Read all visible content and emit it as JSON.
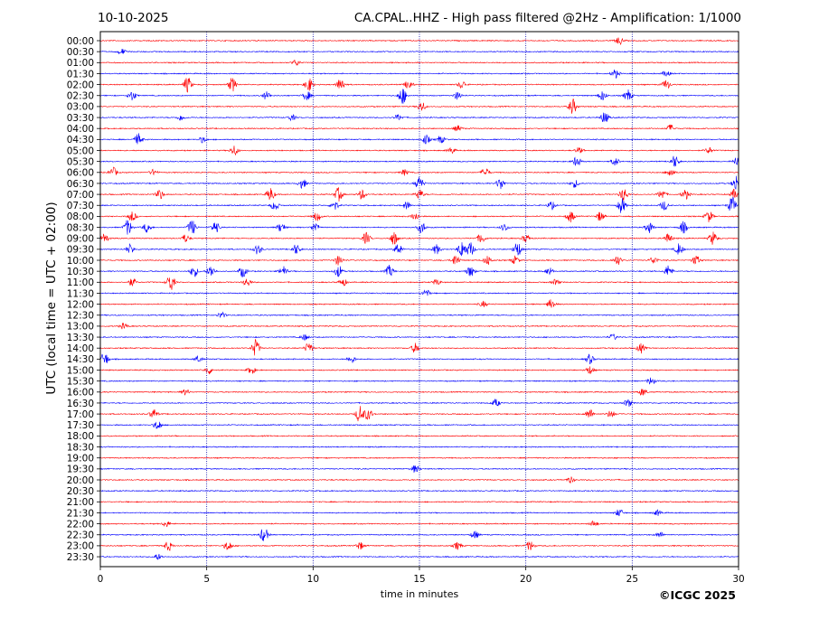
{
  "header": {
    "date": "10-10-2025",
    "title": "CA.CPAL..HHZ - High pass filtered @2Hz - Amplification: 1/1000"
  },
  "footer": {
    "copyright": "©ICGC 2025"
  },
  "colors": {
    "trace_a": "#ff0000",
    "trace_b": "#0000ff",
    "grid": "#0000aa"
  },
  "chart_data": {
    "type": "line",
    "title": "CA.CPAL..HHZ - High pass filtered @2Hz - Amplification: 1/1000",
    "xlabel": "time in minutes",
    "ylabel": "UTC (local time = UTC + 02:00)",
    "xlim": [
      0,
      30
    ],
    "x_ticks": [
      "0",
      "5",
      "10",
      "15",
      "20",
      "25",
      "30"
    ],
    "vertical_gridlines_minutes": [
      5,
      10,
      15,
      20,
      25
    ],
    "row_labels": [
      "00:00",
      "00:30",
      "01:00",
      "01:30",
      "02:00",
      "02:30",
      "03:00",
      "03:30",
      "04:00",
      "04:30",
      "05:00",
      "05:30",
      "06:00",
      "06:30",
      "07:00",
      "07:30",
      "08:00",
      "08:30",
      "09:00",
      "09:30",
      "10:00",
      "10:30",
      "11:00",
      "11:30",
      "12:00",
      "12:30",
      "13:00",
      "13:30",
      "14:00",
      "14:30",
      "15:00",
      "15:30",
      "16:00",
      "16:30",
      "17:00",
      "17:30",
      "18:00",
      "18:30",
      "19:00",
      "19:30",
      "20:00",
      "20:30",
      "21:00",
      "21:30",
      "22:00",
      "22:30",
      "23:00",
      "23:30"
    ],
    "trace_colors_alternating": [
      "#ff0000",
      "#0000ff"
    ],
    "events": [
      {
        "row": 0,
        "t": 24.4,
        "a": 0.4
      },
      {
        "row": 1,
        "t": 1.0,
        "a": 0.3
      },
      {
        "row": 2,
        "t": 9.2,
        "a": 0.3
      },
      {
        "row": 3,
        "t": 24.2,
        "a": 0.45
      },
      {
        "row": 3,
        "t": 26.6,
        "a": 0.3
      },
      {
        "row": 4,
        "t": 4.1,
        "a": 0.8
      },
      {
        "row": 4,
        "t": 6.2,
        "a": 0.7
      },
      {
        "row": 4,
        "t": 9.8,
        "a": 0.7
      },
      {
        "row": 4,
        "t": 11.3,
        "a": 0.7
      },
      {
        "row": 4,
        "t": 14.5,
        "a": 0.5
      },
      {
        "row": 4,
        "t": 17.0,
        "a": 0.4
      },
      {
        "row": 4,
        "t": 26.6,
        "a": 0.5
      },
      {
        "row": 5,
        "t": 1.5,
        "a": 0.5
      },
      {
        "row": 5,
        "t": 7.8,
        "a": 0.4
      },
      {
        "row": 5,
        "t": 9.7,
        "a": 0.5
      },
      {
        "row": 5,
        "t": 14.2,
        "a": 0.9
      },
      {
        "row": 5,
        "t": 16.8,
        "a": 0.4
      },
      {
        "row": 5,
        "t": 23.6,
        "a": 0.5
      },
      {
        "row": 5,
        "t": 24.8,
        "a": 0.6
      },
      {
        "row": 6,
        "t": 15.1,
        "a": 0.5
      },
      {
        "row": 6,
        "t": 22.2,
        "a": 0.8
      },
      {
        "row": 7,
        "t": 3.8,
        "a": 0.3
      },
      {
        "row": 7,
        "t": 9.0,
        "a": 0.3
      },
      {
        "row": 7,
        "t": 14.0,
        "a": 0.3
      },
      {
        "row": 7,
        "t": 23.7,
        "a": 0.6
      },
      {
        "row": 8,
        "t": 16.8,
        "a": 0.3
      },
      {
        "row": 8,
        "t": 26.8,
        "a": 0.4
      },
      {
        "row": 9,
        "t": 1.8,
        "a": 0.6
      },
      {
        "row": 9,
        "t": 4.8,
        "a": 0.3
      },
      {
        "row": 9,
        "t": 15.3,
        "a": 0.5
      },
      {
        "row": 9,
        "t": 16.0,
        "a": 0.4
      },
      {
        "row": 10,
        "t": 6.3,
        "a": 0.5
      },
      {
        "row": 10,
        "t": 16.5,
        "a": 0.3
      },
      {
        "row": 10,
        "t": 22.5,
        "a": 0.3
      },
      {
        "row": 10,
        "t": 28.6,
        "a": 0.3
      },
      {
        "row": 11,
        "t": 22.4,
        "a": 0.55
      },
      {
        "row": 11,
        "t": 24.2,
        "a": 0.4
      },
      {
        "row": 11,
        "t": 27.0,
        "a": 0.6
      },
      {
        "row": 11,
        "t": 29.9,
        "a": 0.4
      },
      {
        "row": 12,
        "t": 0.6,
        "a": 0.5
      },
      {
        "row": 12,
        "t": 2.5,
        "a": 0.3
      },
      {
        "row": 12,
        "t": 14.3,
        "a": 0.3
      },
      {
        "row": 12,
        "t": 18.1,
        "a": 0.5
      },
      {
        "row": 12,
        "t": 26.8,
        "a": 0.5
      },
      {
        "row": 13,
        "t": 9.5,
        "a": 0.5
      },
      {
        "row": 13,
        "t": 15.0,
        "a": 0.7
      },
      {
        "row": 13,
        "t": 18.8,
        "a": 0.6
      },
      {
        "row": 13,
        "t": 22.3,
        "a": 0.4
      },
      {
        "row": 13,
        "t": 29.9,
        "a": 0.9
      },
      {
        "row": 14,
        "t": 2.8,
        "a": 0.5
      },
      {
        "row": 14,
        "t": 8.0,
        "a": 0.7
      },
      {
        "row": 14,
        "t": 11.2,
        "a": 0.7
      },
      {
        "row": 14,
        "t": 12.3,
        "a": 0.5
      },
      {
        "row": 14,
        "t": 15.0,
        "a": 0.5
      },
      {
        "row": 14,
        "t": 24.6,
        "a": 0.7
      },
      {
        "row": 14,
        "t": 26.4,
        "a": 0.5
      },
      {
        "row": 14,
        "t": 27.5,
        "a": 0.5
      },
      {
        "row": 14,
        "t": 29.8,
        "a": 0.5
      },
      {
        "row": 15,
        "t": 8.2,
        "a": 0.5
      },
      {
        "row": 15,
        "t": 11.0,
        "a": 0.5
      },
      {
        "row": 15,
        "t": 14.4,
        "a": 0.4
      },
      {
        "row": 15,
        "t": 21.2,
        "a": 0.4
      },
      {
        "row": 15,
        "t": 24.5,
        "a": 0.8
      },
      {
        "row": 15,
        "t": 26.5,
        "a": 0.5
      },
      {
        "row": 15,
        "t": 29.7,
        "a": 0.9
      },
      {
        "row": 16,
        "t": 1.5,
        "a": 0.5
      },
      {
        "row": 16,
        "t": 10.2,
        "a": 0.5
      },
      {
        "row": 16,
        "t": 14.8,
        "a": 0.4
      },
      {
        "row": 16,
        "t": 22.1,
        "a": 0.6
      },
      {
        "row": 16,
        "t": 23.5,
        "a": 0.5
      },
      {
        "row": 16,
        "t": 28.6,
        "a": 0.6
      },
      {
        "row": 17,
        "t": 1.3,
        "a": 0.8
      },
      {
        "row": 17,
        "t": 2.2,
        "a": 0.5
      },
      {
        "row": 17,
        "t": 4.3,
        "a": 0.8
      },
      {
        "row": 17,
        "t": 5.4,
        "a": 0.6
      },
      {
        "row": 17,
        "t": 8.5,
        "a": 0.5
      },
      {
        "row": 17,
        "t": 10.1,
        "a": 0.5
      },
      {
        "row": 17,
        "t": 15.1,
        "a": 0.6
      },
      {
        "row": 17,
        "t": 19.0,
        "a": 0.4
      },
      {
        "row": 17,
        "t": 25.8,
        "a": 0.6
      },
      {
        "row": 17,
        "t": 27.4,
        "a": 0.6
      },
      {
        "row": 18,
        "t": 0.2,
        "a": 0.5
      },
      {
        "row": 18,
        "t": 4.0,
        "a": 0.4
      },
      {
        "row": 18,
        "t": 12.5,
        "a": 0.6
      },
      {
        "row": 18,
        "t": 13.8,
        "a": 0.7
      },
      {
        "row": 18,
        "t": 17.9,
        "a": 0.5
      },
      {
        "row": 18,
        "t": 20.0,
        "a": 0.4
      },
      {
        "row": 18,
        "t": 26.7,
        "a": 0.5
      },
      {
        "row": 18,
        "t": 28.8,
        "a": 0.7
      },
      {
        "row": 19,
        "t": 1.4,
        "a": 0.5
      },
      {
        "row": 19,
        "t": 7.4,
        "a": 0.5
      },
      {
        "row": 19,
        "t": 9.2,
        "a": 0.5
      },
      {
        "row": 19,
        "t": 14.0,
        "a": 0.6
      },
      {
        "row": 19,
        "t": 15.8,
        "a": 0.5
      },
      {
        "row": 19,
        "t": 17.0,
        "a": 0.9
      },
      {
        "row": 19,
        "t": 17.4,
        "a": 0.7
      },
      {
        "row": 19,
        "t": 19.6,
        "a": 0.8
      },
      {
        "row": 19,
        "t": 27.2,
        "a": 0.6
      },
      {
        "row": 20,
        "t": 11.2,
        "a": 0.5
      },
      {
        "row": 20,
        "t": 16.7,
        "a": 0.6
      },
      {
        "row": 20,
        "t": 18.2,
        "a": 0.5
      },
      {
        "row": 20,
        "t": 19.5,
        "a": 0.4
      },
      {
        "row": 20,
        "t": 24.3,
        "a": 0.5
      },
      {
        "row": 20,
        "t": 26.0,
        "a": 0.4
      },
      {
        "row": 20,
        "t": 28.0,
        "a": 0.5
      },
      {
        "row": 21,
        "t": 4.4,
        "a": 0.6
      },
      {
        "row": 21,
        "t": 5.2,
        "a": 0.6
      },
      {
        "row": 21,
        "t": 6.7,
        "a": 0.6
      },
      {
        "row": 21,
        "t": 8.6,
        "a": 0.5
      },
      {
        "row": 21,
        "t": 11.2,
        "a": 0.6
      },
      {
        "row": 21,
        "t": 13.6,
        "a": 0.6
      },
      {
        "row": 21,
        "t": 17.4,
        "a": 0.6
      },
      {
        "row": 21,
        "t": 21.1,
        "a": 0.4
      },
      {
        "row": 21,
        "t": 26.7,
        "a": 0.6
      },
      {
        "row": 22,
        "t": 1.5,
        "a": 0.4
      },
      {
        "row": 22,
        "t": 3.3,
        "a": 0.9
      },
      {
        "row": 22,
        "t": 6.9,
        "a": 0.4
      },
      {
        "row": 22,
        "t": 11.4,
        "a": 0.4
      },
      {
        "row": 22,
        "t": 15.8,
        "a": 0.3
      },
      {
        "row": 22,
        "t": 21.4,
        "a": 0.3
      },
      {
        "row": 23,
        "t": 15.3,
        "a": 0.4
      },
      {
        "row": 24,
        "t": 18.0,
        "a": 0.3
      },
      {
        "row": 24,
        "t": 21.2,
        "a": 0.5
      },
      {
        "row": 25,
        "t": 5.7,
        "a": 0.3
      },
      {
        "row": 26,
        "t": 1.1,
        "a": 0.3
      },
      {
        "row": 27,
        "t": 9.6,
        "a": 0.3
      },
      {
        "row": 27,
        "t": 24.1,
        "a": 0.3
      },
      {
        "row": 28,
        "t": 7.3,
        "a": 0.9
      },
      {
        "row": 28,
        "t": 9.8,
        "a": 0.6
      },
      {
        "row": 28,
        "t": 14.8,
        "a": 0.5
      },
      {
        "row": 28,
        "t": 25.4,
        "a": 0.5
      },
      {
        "row": 29,
        "t": 0.2,
        "a": 0.7
      },
      {
        "row": 29,
        "t": 4.6,
        "a": 0.3
      },
      {
        "row": 29,
        "t": 11.8,
        "a": 0.4
      },
      {
        "row": 29,
        "t": 23.0,
        "a": 0.5
      },
      {
        "row": 30,
        "t": 5.1,
        "a": 0.4
      },
      {
        "row": 30,
        "t": 7.1,
        "a": 0.4
      },
      {
        "row": 30,
        "t": 23.0,
        "a": 0.4
      },
      {
        "row": 31,
        "t": 25.9,
        "a": 0.4
      },
      {
        "row": 32,
        "t": 4.0,
        "a": 0.3
      },
      {
        "row": 32,
        "t": 25.5,
        "a": 0.4
      },
      {
        "row": 33,
        "t": 18.6,
        "a": 0.4
      },
      {
        "row": 33,
        "t": 24.8,
        "a": 0.4
      },
      {
        "row": 34,
        "t": 2.5,
        "a": 0.5
      },
      {
        "row": 34,
        "t": 12.2,
        "a": 0.9
      },
      {
        "row": 34,
        "t": 12.6,
        "a": 0.6
      },
      {
        "row": 34,
        "t": 23.0,
        "a": 0.5
      },
      {
        "row": 34,
        "t": 24.0,
        "a": 0.4
      },
      {
        "row": 35,
        "t": 2.7,
        "a": 0.5
      },
      {
        "row": 39,
        "t": 14.8,
        "a": 0.4
      },
      {
        "row": 40,
        "t": 22.1,
        "a": 0.3
      },
      {
        "row": 43,
        "t": 24.4,
        "a": 0.4
      },
      {
        "row": 43,
        "t": 26.2,
        "a": 0.3
      },
      {
        "row": 44,
        "t": 3.1,
        "a": 0.3
      },
      {
        "row": 44,
        "t": 23.2,
        "a": 0.3
      },
      {
        "row": 45,
        "t": 7.7,
        "a": 0.8
      },
      {
        "row": 45,
        "t": 17.6,
        "a": 0.4
      },
      {
        "row": 45,
        "t": 26.3,
        "a": 0.3
      },
      {
        "row": 46,
        "t": 3.2,
        "a": 0.5
      },
      {
        "row": 46,
        "t": 6.0,
        "a": 0.5
      },
      {
        "row": 46,
        "t": 12.2,
        "a": 0.4
      },
      {
        "row": 46,
        "t": 16.8,
        "a": 0.4
      },
      {
        "row": 46,
        "t": 20.2,
        "a": 0.5
      },
      {
        "row": 47,
        "t": 2.7,
        "a": 0.3
      }
    ]
  }
}
